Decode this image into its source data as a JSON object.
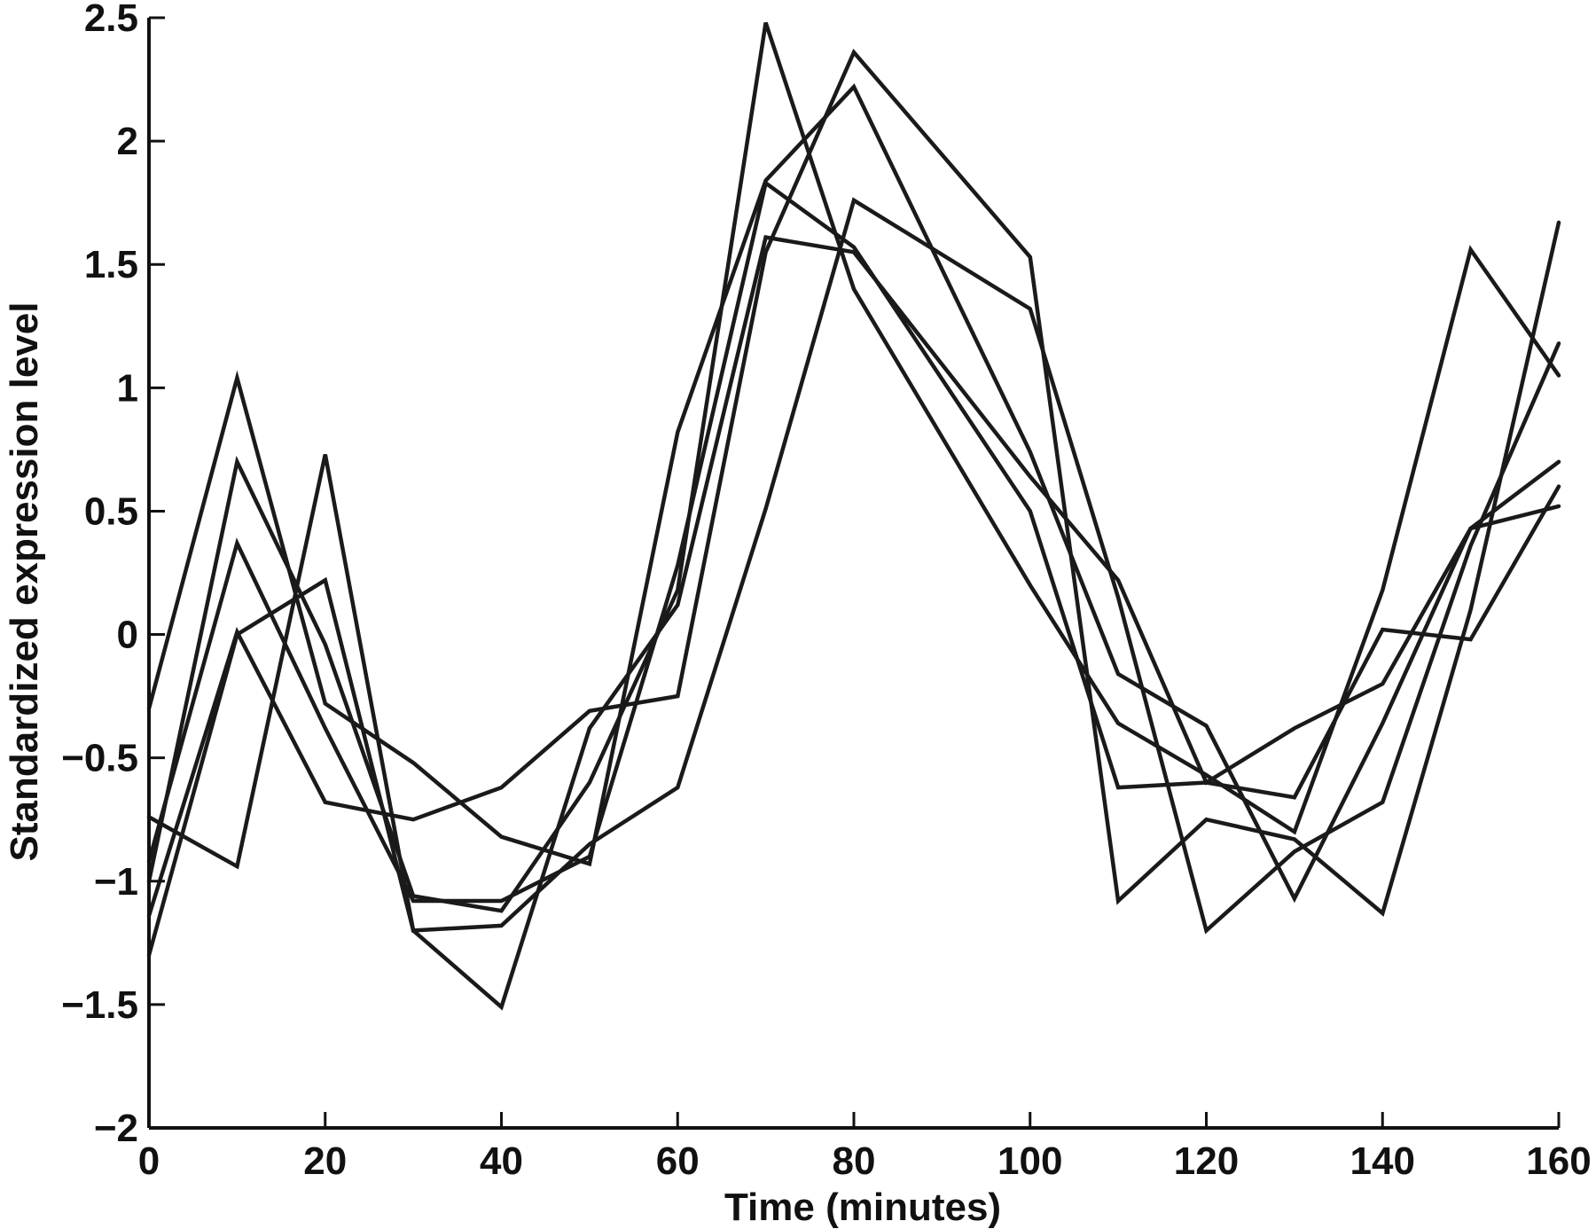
{
  "chart_data": {
    "type": "line",
    "title": "",
    "xlabel": "Time (minutes)",
    "ylabel": "Standardized expression level",
    "xlim": [
      0,
      160
    ],
    "ylim": [
      -2,
      2.5
    ],
    "xticks": [
      0,
      20,
      40,
      60,
      80,
      100,
      120,
      140,
      160
    ],
    "xtick_labels": [
      "0",
      "20",
      "40",
      "60",
      "80",
      "100",
      "120",
      "140",
      "160"
    ],
    "yticks": [
      -2,
      -1.5,
      -1,
      -0.5,
      0,
      0.5,
      1,
      1.5,
      2,
      2.5
    ],
    "ytick_labels": [
      "−2",
      "−1.5",
      "−1",
      "−0.5",
      "0",
      "0.5",
      "1",
      "1.5",
      "2",
      "2.5"
    ],
    "grid": false,
    "legend": "none",
    "line_color": "#1a1a1a",
    "x": [
      0,
      10,
      20,
      30,
      40,
      50,
      60,
      70,
      80,
      100,
      110,
      120,
      130,
      140,
      150,
      160
    ],
    "series": [
      {
        "values": [
          -0.3,
          1.04,
          -0.28,
          -0.52,
          -0.82,
          -0.93,
          0.82,
          1.84,
          2.22,
          0.74,
          -0.16,
          -0.37,
          -1.07,
          -0.36,
          0.43,
          0.7
        ]
      },
      {
        "values": [
          -1.0,
          0.7,
          -0.04,
          -1.06,
          -1.12,
          -0.6,
          0.18,
          2.48,
          1.4,
          0.2,
          -0.36,
          -0.57,
          -0.8,
          0.18,
          1.56,
          1.05
        ]
      },
      {
        "values": [
          -0.74,
          -0.94,
          0.73,
          -1.2,
          -1.51,
          -0.38,
          0.12,
          1.61,
          1.55,
          0.64,
          0.22,
          -0.6,
          -0.38,
          -0.2,
          0.43,
          0.52
        ]
      },
      {
        "values": [
          -0.92,
          0.37,
          -0.38,
          -1.08,
          -1.08,
          -0.9,
          0.28,
          1.83,
          1.57,
          0.5,
          -0.62,
          -0.6,
          -0.66,
          0.02,
          -0.02,
          0.6
        ]
      },
      {
        "values": [
          -1.14,
          0.01,
          -0.68,
          -0.75,
          -0.62,
          -0.31,
          -0.25,
          1.55,
          2.36,
          1.53,
          -1.08,
          -0.75,
          -0.83,
          -1.13,
          0.1,
          1.67
        ]
      },
      {
        "values": [
          -1.3,
          0.0,
          0.22,
          -1.2,
          -1.18,
          -0.85,
          -0.62,
          0.51,
          1.76,
          1.32,
          0.15,
          -1.2,
          -0.88,
          -0.68,
          0.36,
          1.18
        ]
      }
    ]
  }
}
